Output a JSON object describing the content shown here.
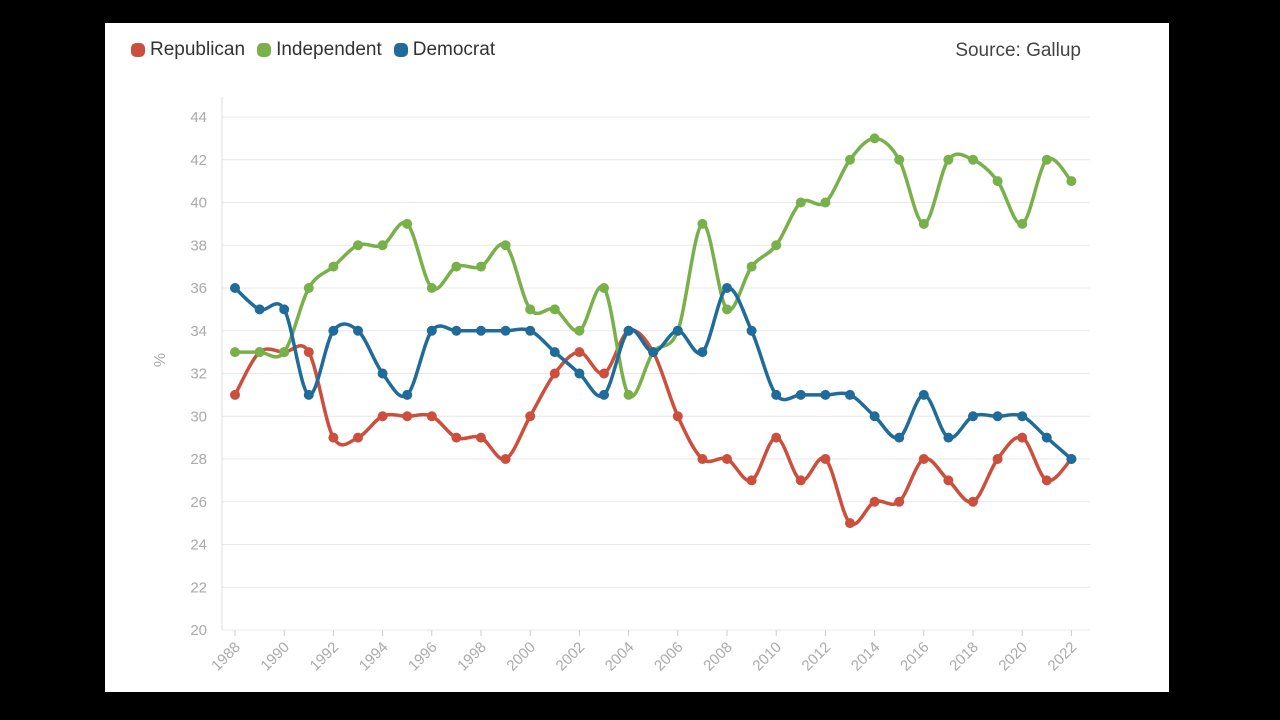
{
  "source_label": "Source: Gallup",
  "colors": {
    "Republican": "#cc4e3c",
    "Independent": "#78b04a",
    "Democrat": "#1f6b99",
    "grid": "#e8e8e8"
  },
  "chart_data": {
    "type": "line",
    "title": "",
    "xlabel": "",
    "ylabel": "%",
    "ylim": [
      20,
      44
    ],
    "yticks": [
      20,
      22,
      24,
      26,
      28,
      30,
      32,
      34,
      36,
      38,
      40,
      42,
      44
    ],
    "xticks": [
      1988,
      1990,
      1992,
      1994,
      1996,
      1998,
      2000,
      2002,
      2004,
      2006,
      2008,
      2010,
      2012,
      2014,
      2016,
      2018,
      2020,
      2022
    ],
    "grid": true,
    "legend_position": "top-left",
    "x": [
      1988,
      1989,
      1990,
      1991,
      1992,
      1993,
      1994,
      1995,
      1996,
      1997,
      1998,
      1999,
      2000,
      2001,
      2002,
      2003,
      2004,
      2005,
      2006,
      2007,
      2008,
      2009,
      2010,
      2011,
      2012,
      2013,
      2014,
      2015,
      2016,
      2017,
      2018,
      2019,
      2020,
      2021,
      2022
    ],
    "series": [
      {
        "name": "Republican",
        "values": [
          31,
          33,
          33,
          33,
          29,
          29,
          30,
          30,
          30,
          29,
          29,
          28,
          30,
          32,
          33,
          32,
          34,
          33,
          30,
          28,
          28,
          27,
          29,
          27,
          28,
          25,
          26,
          26,
          28,
          27,
          26,
          28,
          29,
          27,
          28
        ]
      },
      {
        "name": "Independent",
        "values": [
          33,
          33,
          33,
          36,
          37,
          38,
          38,
          39,
          36,
          37,
          37,
          38,
          35,
          35,
          34,
          36,
          31,
          33,
          34,
          39,
          35,
          37,
          38,
          40,
          40,
          42,
          43,
          42,
          39,
          42,
          42,
          41,
          39,
          42,
          41
        ]
      },
      {
        "name": "Democrat",
        "values": [
          36,
          35,
          35,
          31,
          34,
          34,
          32,
          31,
          34,
          34,
          34,
          34,
          34,
          33,
          32,
          31,
          34,
          33,
          34,
          33,
          36,
          34,
          31,
          31,
          31,
          31,
          30,
          29,
          31,
          29,
          30,
          30,
          30,
          29,
          28
        ]
      }
    ]
  }
}
